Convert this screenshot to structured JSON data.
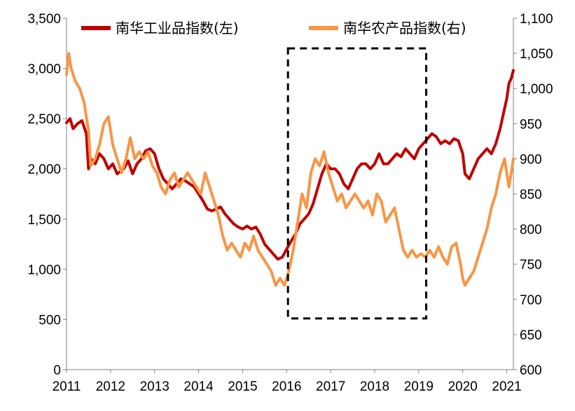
{
  "chart_data": {
    "type": "line",
    "title": "",
    "xlabel": "",
    "ylabel_left": "",
    "ylabel_right": "",
    "x_range": [
      2011.0,
      2021.15
    ],
    "y_left_range": [
      0,
      3500
    ],
    "y_right_range": [
      600,
      1100
    ],
    "x_ticks": [
      {
        "value": 2011,
        "label": "2011"
      },
      {
        "value": 2012,
        "label": "2012"
      },
      {
        "value": 2013,
        "label": "2013"
      },
      {
        "value": 2014,
        "label": "2014"
      },
      {
        "value": 2015,
        "label": "2015"
      },
      {
        "value": 2016,
        "label": "2016"
      },
      {
        "value": 2017,
        "label": "2017"
      },
      {
        "value": 2018,
        "label": "2018"
      },
      {
        "value": 2019,
        "label": "2019"
      },
      {
        "value": 2020,
        "label": "2020"
      },
      {
        "value": 2021,
        "label": "2021"
      }
    ],
    "y_left_ticks": [
      {
        "value": 0,
        "label": "0"
      },
      {
        "value": 500,
        "label": "500"
      },
      {
        "value": 1000,
        "label": "1,000"
      },
      {
        "value": 1500,
        "label": "1,500"
      },
      {
        "value": 2000,
        "label": "2,000"
      },
      {
        "value": 2500,
        "label": "2,500"
      },
      {
        "value": 3000,
        "label": "3,000"
      },
      {
        "value": 3500,
        "label": "3,500"
      }
    ],
    "y_right_ticks": [
      {
        "value": 600,
        "label": "600"
      },
      {
        "value": 650,
        "label": "650"
      },
      {
        "value": 700,
        "label": "700"
      },
      {
        "value": 750,
        "label": "750"
      },
      {
        "value": 800,
        "label": "800"
      },
      {
        "value": 850,
        "label": "850"
      },
      {
        "value": 900,
        "label": "900"
      },
      {
        "value": 950,
        "label": "950"
      },
      {
        "value": 1000,
        "label": "1,000"
      },
      {
        "value": 1050,
        "label": "1,050"
      },
      {
        "value": 1100,
        "label": "1,100"
      }
    ],
    "series": [
      {
        "name": "南华工业品指数(左)",
        "axis": "left",
        "color": "#C00000",
        "points": [
          [
            2011.0,
            2460
          ],
          [
            2011.08,
            2500
          ],
          [
            2011.15,
            2400
          ],
          [
            2011.25,
            2450
          ],
          [
            2011.35,
            2480
          ],
          [
            2011.45,
            2350
          ],
          [
            2011.5,
            2000
          ],
          [
            2011.55,
            2100
          ],
          [
            2011.65,
            2050
          ],
          [
            2011.75,
            2150
          ],
          [
            2011.85,
            2100
          ],
          [
            2011.95,
            2000
          ],
          [
            2012.05,
            2050
          ],
          [
            2012.15,
            1950
          ],
          [
            2012.3,
            2000
          ],
          [
            2012.4,
            2080
          ],
          [
            2012.5,
            1950
          ],
          [
            2012.6,
            2050
          ],
          [
            2012.7,
            2100
          ],
          [
            2012.8,
            2180
          ],
          [
            2012.9,
            2200
          ],
          [
            2013.0,
            2150
          ],
          [
            2013.1,
            2000
          ],
          [
            2013.2,
            1900
          ],
          [
            2013.3,
            1850
          ],
          [
            2013.4,
            1800
          ],
          [
            2013.5,
            1850
          ],
          [
            2013.6,
            1900
          ],
          [
            2013.7,
            1880
          ],
          [
            2013.8,
            1850
          ],
          [
            2013.9,
            1820
          ],
          [
            2014.0,
            1750
          ],
          [
            2014.1,
            1680
          ],
          [
            2014.2,
            1600
          ],
          [
            2014.3,
            1580
          ],
          [
            2014.4,
            1600
          ],
          [
            2014.5,
            1620
          ],
          [
            2014.6,
            1550
          ],
          [
            2014.7,
            1500
          ],
          [
            2014.8,
            1450
          ],
          [
            2014.9,
            1420
          ],
          [
            2015.0,
            1400
          ],
          [
            2015.1,
            1430
          ],
          [
            2015.2,
            1400
          ],
          [
            2015.3,
            1420
          ],
          [
            2015.4,
            1350
          ],
          [
            2015.5,
            1250
          ],
          [
            2015.6,
            1200
          ],
          [
            2015.7,
            1150
          ],
          [
            2015.8,
            1100
          ],
          [
            2015.9,
            1120
          ],
          [
            2016.0,
            1200
          ],
          [
            2016.1,
            1280
          ],
          [
            2016.2,
            1350
          ],
          [
            2016.3,
            1450
          ],
          [
            2016.4,
            1500
          ],
          [
            2016.5,
            1550
          ],
          [
            2016.6,
            1650
          ],
          [
            2016.7,
            1800
          ],
          [
            2016.8,
            1950
          ],
          [
            2016.9,
            2050
          ],
          [
            2017.0,
            2000
          ],
          [
            2017.1,
            2000
          ],
          [
            2017.2,
            1950
          ],
          [
            2017.3,
            1850
          ],
          [
            2017.4,
            1800
          ],
          [
            2017.5,
            1900
          ],
          [
            2017.6,
            2000
          ],
          [
            2017.7,
            2050
          ],
          [
            2017.8,
            2050
          ],
          [
            2017.9,
            2000
          ],
          [
            2018.0,
            2050
          ],
          [
            2018.1,
            2150
          ],
          [
            2018.2,
            2050
          ],
          [
            2018.3,
            2050
          ],
          [
            2018.4,
            2100
          ],
          [
            2018.5,
            2150
          ],
          [
            2018.6,
            2120
          ],
          [
            2018.7,
            2200
          ],
          [
            2018.8,
            2150
          ],
          [
            2018.9,
            2100
          ],
          [
            2019.0,
            2200
          ],
          [
            2019.1,
            2250
          ],
          [
            2019.2,
            2300
          ],
          [
            2019.3,
            2350
          ],
          [
            2019.4,
            2320
          ],
          [
            2019.5,
            2250
          ],
          [
            2019.6,
            2280
          ],
          [
            2019.7,
            2250
          ],
          [
            2019.8,
            2300
          ],
          [
            2019.9,
            2280
          ],
          [
            2020.0,
            2150
          ],
          [
            2020.05,
            1950
          ],
          [
            2020.15,
            1900
          ],
          [
            2020.25,
            2000
          ],
          [
            2020.35,
            2100
          ],
          [
            2020.45,
            2150
          ],
          [
            2020.55,
            2200
          ],
          [
            2020.65,
            2150
          ],
          [
            2020.75,
            2250
          ],
          [
            2020.85,
            2400
          ],
          [
            2020.95,
            2600
          ],
          [
            2021.0,
            2700
          ],
          [
            2021.05,
            2850
          ],
          [
            2021.1,
            2900
          ],
          [
            2021.15,
            2980
          ]
        ]
      },
      {
        "name": "南华农产品指数(右)",
        "axis": "right",
        "color": "#F79646",
        "points": [
          [
            2011.0,
            1020
          ],
          [
            2011.05,
            1050
          ],
          [
            2011.1,
            1030
          ],
          [
            2011.2,
            1010
          ],
          [
            2011.3,
            1000
          ],
          [
            2011.4,
            980
          ],
          [
            2011.5,
            940
          ],
          [
            2011.55,
            890
          ],
          [
            2011.65,
            900
          ],
          [
            2011.75,
            920
          ],
          [
            2011.85,
            950
          ],
          [
            2011.95,
            960
          ],
          [
            2012.05,
            920
          ],
          [
            2012.15,
            900
          ],
          [
            2012.25,
            880
          ],
          [
            2012.35,
            900
          ],
          [
            2012.45,
            930
          ],
          [
            2012.55,
            900
          ],
          [
            2012.65,
            910
          ],
          [
            2012.75,
            900
          ],
          [
            2012.85,
            910
          ],
          [
            2012.95,
            890
          ],
          [
            2013.05,
            880
          ],
          [
            2013.15,
            860
          ],
          [
            2013.25,
            850
          ],
          [
            2013.35,
            870
          ],
          [
            2013.45,
            880
          ],
          [
            2013.55,
            860
          ],
          [
            2013.65,
            870
          ],
          [
            2013.75,
            880
          ],
          [
            2013.85,
            870
          ],
          [
            2013.95,
            860
          ],
          [
            2014.05,
            850
          ],
          [
            2014.15,
            880
          ],
          [
            2014.25,
            860
          ],
          [
            2014.35,
            840
          ],
          [
            2014.45,
            820
          ],
          [
            2014.55,
            790
          ],
          [
            2014.65,
            770
          ],
          [
            2014.75,
            780
          ],
          [
            2014.85,
            770
          ],
          [
            2014.95,
            760
          ],
          [
            2015.05,
            780
          ],
          [
            2015.15,
            770
          ],
          [
            2015.25,
            790
          ],
          [
            2015.35,
            770
          ],
          [
            2015.45,
            760
          ],
          [
            2015.55,
            750
          ],
          [
            2015.65,
            740
          ],
          [
            2015.75,
            720
          ],
          [
            2015.85,
            730
          ],
          [
            2015.95,
            720
          ],
          [
            2016.05,
            740
          ],
          [
            2016.15,
            770
          ],
          [
            2016.25,
            810
          ],
          [
            2016.35,
            850
          ],
          [
            2016.45,
            830
          ],
          [
            2016.55,
            880
          ],
          [
            2016.65,
            900
          ],
          [
            2016.75,
            890
          ],
          [
            2016.85,
            910
          ],
          [
            2016.95,
            880
          ],
          [
            2017.05,
            860
          ],
          [
            2017.15,
            840
          ],
          [
            2017.25,
            850
          ],
          [
            2017.35,
            830
          ],
          [
            2017.45,
            840
          ],
          [
            2017.55,
            850
          ],
          [
            2017.65,
            840
          ],
          [
            2017.75,
            830
          ],
          [
            2017.85,
            840
          ],
          [
            2017.95,
            820
          ],
          [
            2018.05,
            850
          ],
          [
            2018.15,
            840
          ],
          [
            2018.25,
            810
          ],
          [
            2018.35,
            820
          ],
          [
            2018.45,
            830
          ],
          [
            2018.55,
            800
          ],
          [
            2018.65,
            770
          ],
          [
            2018.75,
            760
          ],
          [
            2018.85,
            770
          ],
          [
            2018.95,
            760
          ],
          [
            2019.05,
            765
          ],
          [
            2019.15,
            760
          ],
          [
            2019.25,
            770
          ],
          [
            2019.35,
            760
          ],
          [
            2019.45,
            775
          ],
          [
            2019.55,
            760
          ],
          [
            2019.65,
            750
          ],
          [
            2019.75,
            775
          ],
          [
            2019.85,
            780
          ],
          [
            2019.95,
            750
          ],
          [
            2020.0,
            730
          ],
          [
            2020.05,
            720
          ],
          [
            2020.15,
            730
          ],
          [
            2020.25,
            740
          ],
          [
            2020.35,
            760
          ],
          [
            2020.45,
            780
          ],
          [
            2020.55,
            800
          ],
          [
            2020.65,
            830
          ],
          [
            2020.75,
            850
          ],
          [
            2020.85,
            880
          ],
          [
            2020.95,
            900
          ],
          [
            2021.0,
            880
          ],
          [
            2021.05,
            860
          ],
          [
            2021.1,
            880
          ],
          [
            2021.15,
            900
          ]
        ]
      }
    ],
    "annotations": [
      {
        "type": "dashed-rectangle",
        "x_range": [
          2016.03,
          2019.17
        ],
        "y_left_range": [
          510,
          3200
        ]
      }
    ],
    "legend": {
      "placement": "top"
    }
  },
  "legend": {
    "industrial_label": "南华工业品指数(左)",
    "agricultural_label": "南华农产品指数(右)"
  }
}
